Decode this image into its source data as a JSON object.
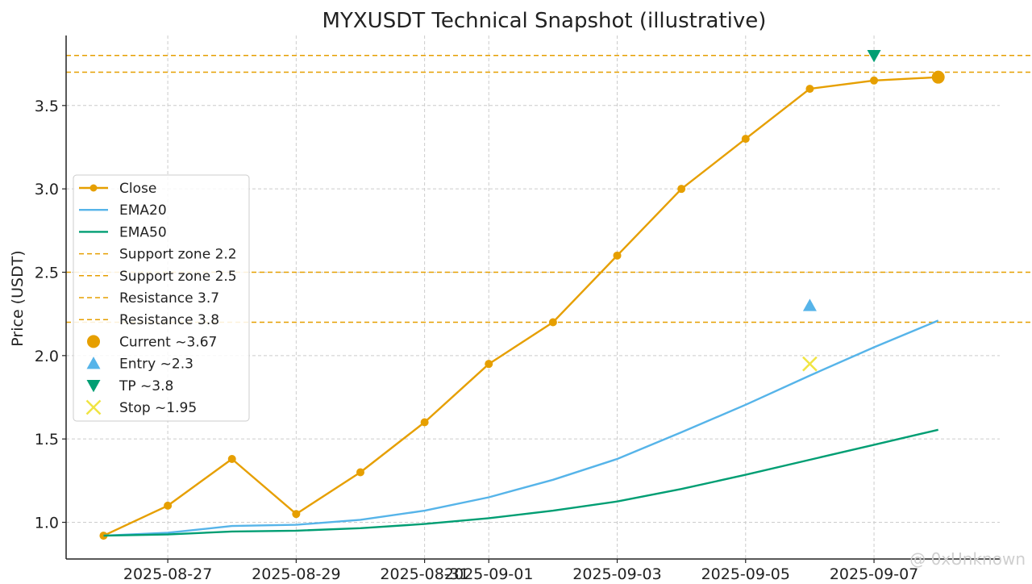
{
  "chart_data": {
    "type": "line",
    "title": "MYXUSDT Technical Snapshot (illustrative)",
    "xlabel": "",
    "ylabel": "Price (USDT)",
    "x": [
      "2025-08-26",
      "2025-08-27",
      "2025-08-28",
      "2025-08-29",
      "2025-08-30",
      "2025-08-31",
      "2025-09-01",
      "2025-09-02",
      "2025-09-03",
      "2025-09-04",
      "2025-09-05",
      "2025-09-06",
      "2025-09-07",
      "2025-09-08"
    ],
    "xlim": [
      "2025-08-25T10:00",
      "2025-09-08T23:00"
    ],
    "ylim": [
      0.78,
      3.92
    ],
    "x_ticks": [
      "2025-08-27",
      "2025-08-29",
      "2025-08-31",
      "2025-09-01",
      "2025-09-03",
      "2025-09-05",
      "2025-09-07"
    ],
    "y_ticks": [
      1.0,
      1.5,
      2.0,
      2.5,
      3.0,
      3.5
    ],
    "grid": true,
    "legend_position": "center-left",
    "series": [
      {
        "name": "Close",
        "color": "#E69F00",
        "marker": "circle",
        "values": [
          0.92,
          1.1,
          1.38,
          1.05,
          1.3,
          1.6,
          1.95,
          2.2,
          2.6,
          3.0,
          3.3,
          3.6,
          3.65,
          3.67
        ]
      },
      {
        "name": "EMA20",
        "color": "#56B4E9",
        "marker": "none",
        "values": [
          0.92,
          0.937,
          0.978,
          0.985,
          1.015,
          1.07,
          1.15,
          1.255,
          1.38,
          1.54,
          1.705,
          1.88,
          2.05,
          2.21
        ]
      },
      {
        "name": "EMA50",
        "color": "#009E73",
        "marker": "none",
        "values": [
          0.92,
          0.927,
          0.945,
          0.95,
          0.965,
          0.99,
          1.025,
          1.07,
          1.125,
          1.2,
          1.285,
          1.375,
          1.465,
          1.555
        ]
      }
    ],
    "hlines": [
      {
        "name": "Support zone 2.2",
        "value": 2.2,
        "color": "#E69F00"
      },
      {
        "name": "Support zone 2.5",
        "value": 2.5,
        "color": "#E69F00"
      },
      {
        "name": "Resistance 3.7",
        "value": 3.7,
        "color": "#E69F00"
      },
      {
        "name": "Resistance 3.8",
        "value": 3.8,
        "color": "#E69F00"
      }
    ],
    "points": [
      {
        "name": "Current ~3.67",
        "x": "2025-09-08",
        "y": 3.67,
        "marker": "circle",
        "color": "#E69F00"
      },
      {
        "name": "Entry ~2.3",
        "x": "2025-09-06",
        "y": 2.3,
        "marker": "triangle-up",
        "color": "#56B4E9"
      },
      {
        "name": "TP ~3.8",
        "x": "2025-09-07",
        "y": 3.8,
        "marker": "triangle-down",
        "color": "#009E73"
      },
      {
        "name": "Stop ~1.95",
        "x": "2025-09-06",
        "y": 1.95,
        "marker": "x",
        "color": "#F0E442"
      }
    ]
  },
  "watermark": "@ 0xUnknown"
}
